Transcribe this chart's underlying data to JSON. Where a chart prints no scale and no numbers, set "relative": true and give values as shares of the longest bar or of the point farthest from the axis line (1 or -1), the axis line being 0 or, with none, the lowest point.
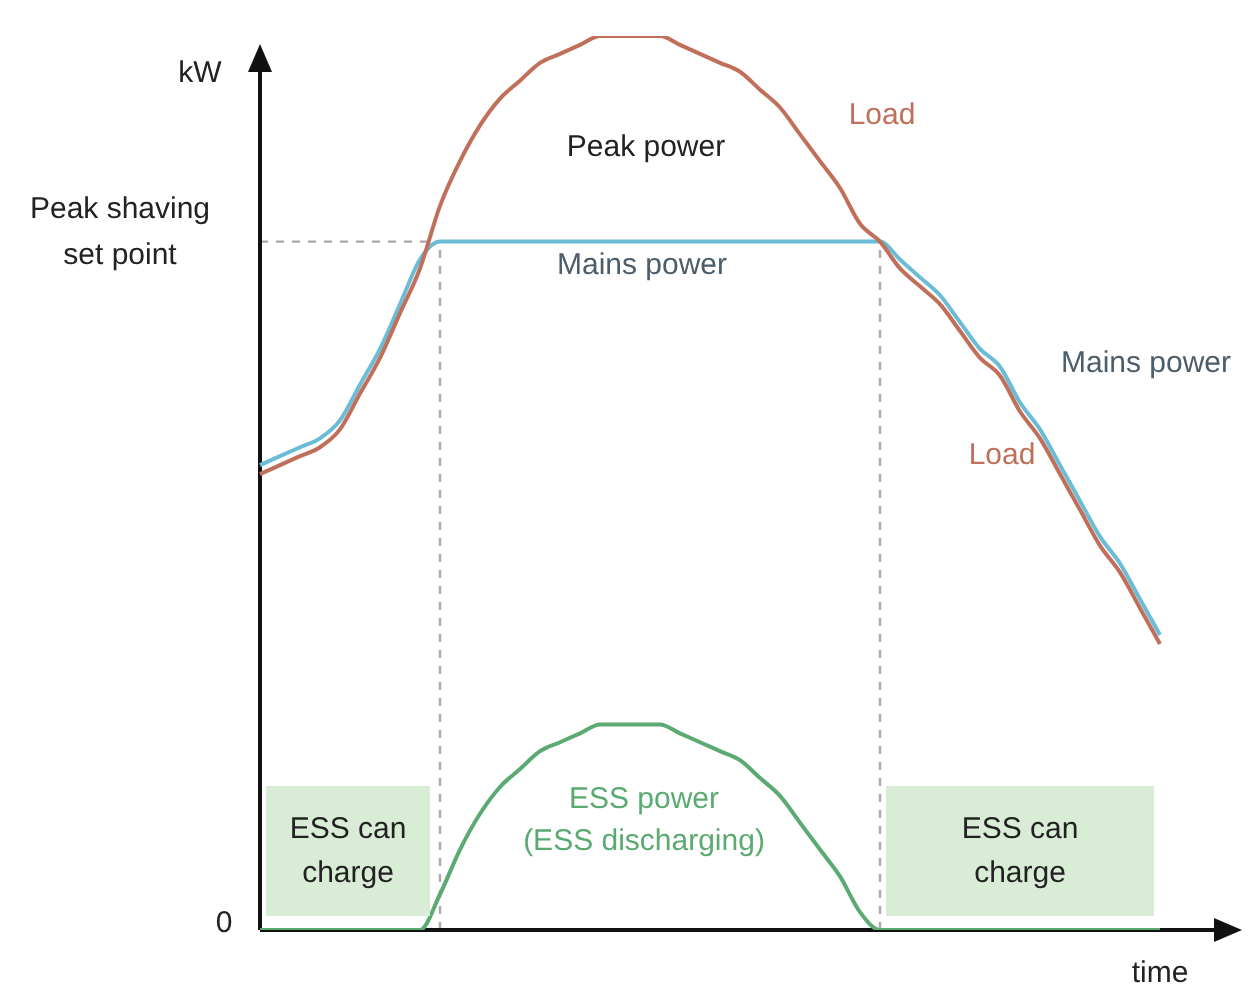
{
  "chart_data": {
    "type": "line",
    "relative": true,
    "xlabel": "time",
    "ylabel": "kW",
    "legend": false,
    "grid": false,
    "marker": "none",
    "line_style": "solid",
    "categories": [
      null,
      null,
      null,
      null,
      null,
      null,
      null,
      null,
      null,
      null,
      null,
      null,
      null,
      null,
      null,
      null,
      null,
      null,
      null,
      null,
      null,
      null,
      null,
      null,
      null,
      null,
      null,
      null,
      null,
      null,
      null,
      null,
      null,
      null,
      null,
      null,
      null,
      null,
      null,
      null,
      null,
      null,
      null,
      null,
      null,
      null
    ],
    "series": [
      {
        "name": "Load",
        "color": "#c0705a",
        "values": [
          0.51,
          0.52,
          0.53,
          0.54,
          0.56,
          0.6,
          0.64,
          0.69,
          0.74,
          0.81,
          0.86,
          0.9,
          0.93,
          0.95,
          0.97,
          0.98,
          0.99,
          1.0,
          1.0,
          1.0,
          1.0,
          0.99,
          0.98,
          0.97,
          0.96,
          0.94,
          0.92,
          0.89,
          0.86,
          0.83,
          0.79,
          0.77,
          0.74,
          0.72,
          0.7,
          0.67,
          0.64,
          0.62,
          0.58,
          0.55,
          0.51,
          0.47,
          0.43,
          0.4,
          0.36,
          0.32
        ]
      },
      {
        "name": "Mains power",
        "color": "#6bbcd6",
        "values": [
          0.52,
          0.53,
          0.54,
          0.55,
          0.57,
          0.61,
          0.65,
          0.7,
          0.75,
          0.77,
          0.77,
          0.77,
          0.77,
          0.77,
          0.77,
          0.77,
          0.77,
          0.77,
          0.77,
          0.77,
          0.77,
          0.77,
          0.77,
          0.77,
          0.77,
          0.77,
          0.77,
          0.77,
          0.77,
          0.77,
          0.77,
          0.77,
          0.75,
          0.73,
          0.71,
          0.68,
          0.65,
          0.63,
          0.59,
          0.56,
          0.52,
          0.48,
          0.44,
          0.41,
          0.37,
          0.33
        ]
      },
      {
        "name": "ESS power",
        "color": "#5aaa72",
        "values": [
          0,
          0,
          0,
          0,
          0,
          0,
          0,
          0,
          0,
          0.04,
          0.09,
          0.13,
          0.16,
          0.18,
          0.2,
          0.21,
          0.22,
          0.23,
          0.23,
          0.23,
          0.23,
          0.22,
          0.21,
          0.2,
          0.19,
          0.17,
          0.15,
          0.12,
          0.09,
          0.06,
          0.02,
          0,
          0,
          0,
          0,
          0,
          0,
          0,
          0,
          0,
          0,
          0,
          0,
          0,
          0,
          0
        ]
      }
    ],
    "ref_lines": [
      {
        "axis": "y",
        "value": 0.77,
        "label": "Peak shaving set point",
        "color": "#aaaaaa",
        "line_style": "dashed"
      }
    ],
    "annotations": [
      "Peak power",
      "(ESS discharging)",
      "0",
      "ESS can charge",
      "ESS can charge"
    ]
  }
}
